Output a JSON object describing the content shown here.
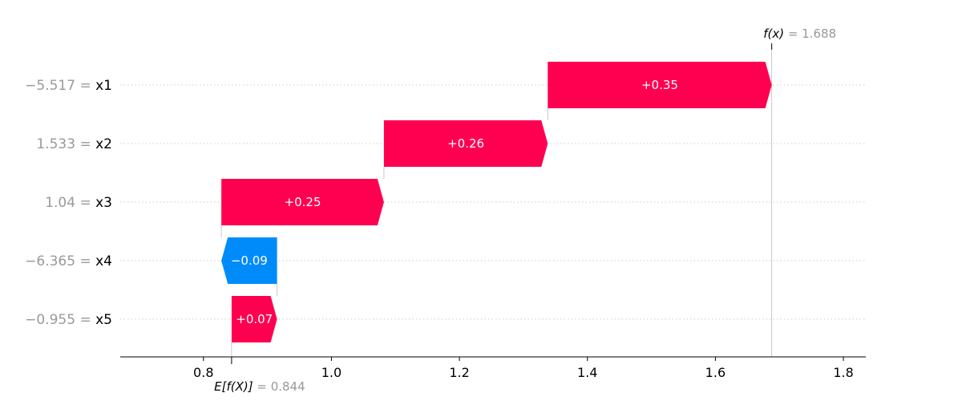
{
  "chart_data": {
    "type": "waterfall",
    "base_value": 0.844,
    "base_label_pre": "E[f(X)]",
    "base_label_val": "= 0.844",
    "output_value": 1.688,
    "output_label_pre": "f(x)",
    "output_label_val": "= 1.688",
    "xlim": [
      0.67,
      1.835
    ],
    "x_ticks": [
      0.8,
      1.0,
      1.2,
      1.4,
      1.6,
      1.8
    ],
    "x_tick_labels": [
      "0.8",
      "1.0",
      "1.2",
      "1.4",
      "1.6",
      "1.8"
    ],
    "features": [
      {
        "value_text": "−5.517 =",
        "name": "x1",
        "start": 1.338,
        "end": 1.688,
        "contribution": 0.35,
        "label": "+0.35"
      },
      {
        "value_text": "1.533 =",
        "name": "x2",
        "start": 1.082,
        "end": 1.338,
        "contribution": 0.26,
        "label": "+0.26"
      },
      {
        "value_text": "1.04 =",
        "name": "x3",
        "start": 0.828,
        "end": 1.082,
        "contribution": 0.25,
        "label": "+0.25"
      },
      {
        "value_text": "−6.365 =",
        "name": "x4",
        "start": 0.915,
        "end": 0.828,
        "contribution": -0.09,
        "label": "−0.09"
      },
      {
        "value_text": "−0.955 =",
        "name": "x5",
        "start": 0.844,
        "end": 0.915,
        "contribution": 0.07,
        "label": "+0.07"
      }
    ],
    "colors": {
      "positive": "#ff0051",
      "negative": "#008bfb",
      "grid": "#cccccc",
      "axis": "#000000"
    }
  }
}
